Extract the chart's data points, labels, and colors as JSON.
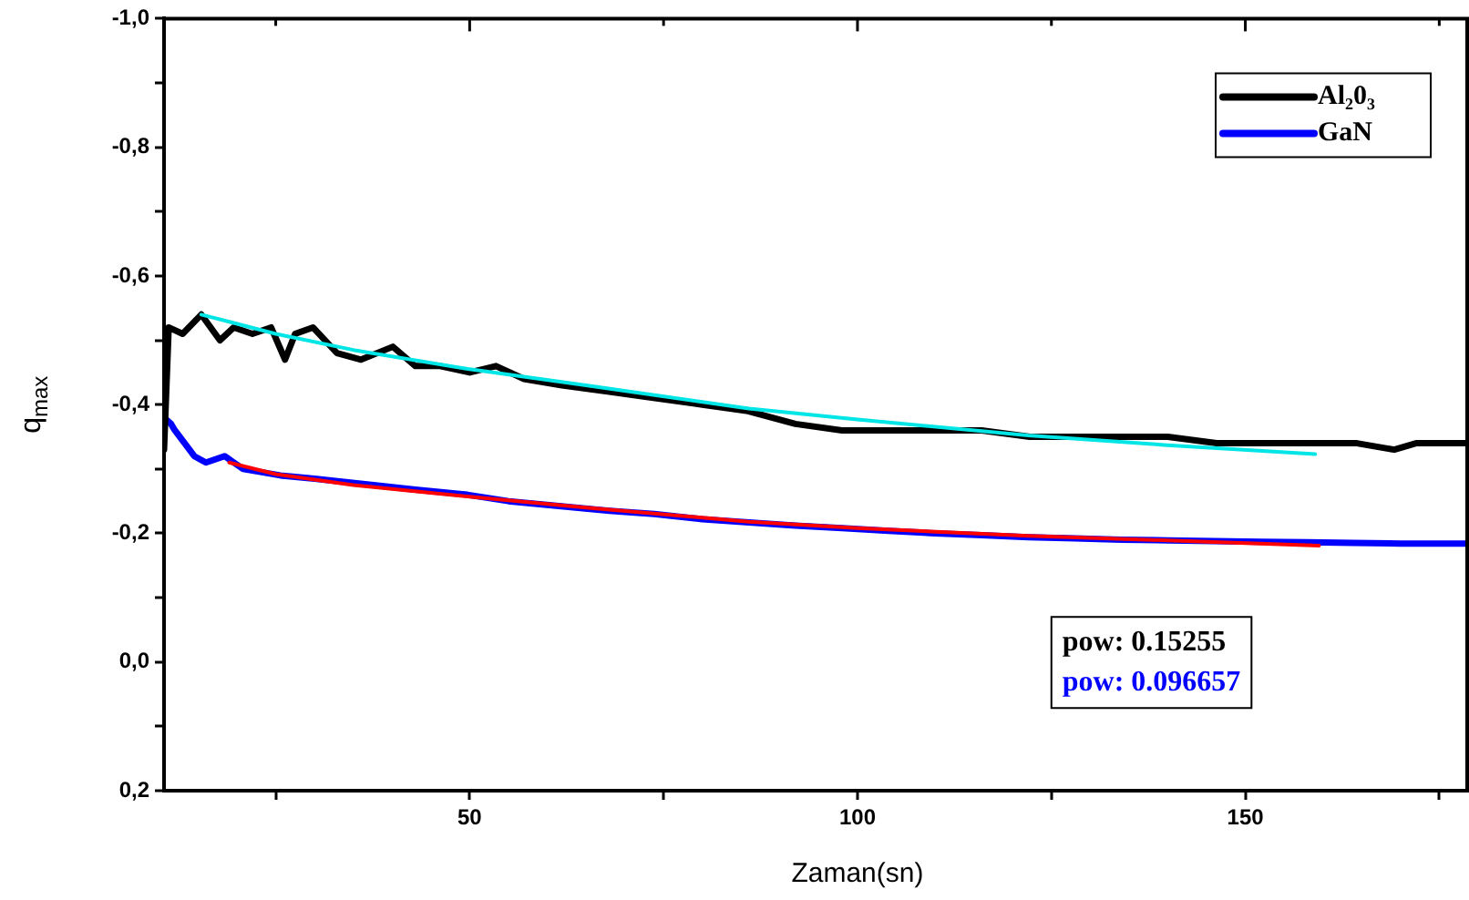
{
  "chart_data": {
    "type": "line",
    "xlabel": "Zaman(sn)",
    "ylabel": "q$_{max}$",
    "xlim": [
      10.6,
      178.6
    ],
    "ylim": [
      0.2,
      -1.0
    ],
    "xticks": [
      {
        "value": 25,
        "label": null
      },
      50,
      {
        "value": 75,
        "label": null
      },
      100,
      {
        "value": 125,
        "label": null
      },
      150,
      {
        "value": 175,
        "label": null
      }
    ],
    "yticks": [
      {
        "value": -1.0,
        "label": "-1,0"
      },
      {
        "value": -0.9,
        "label": null
      },
      {
        "value": -0.8,
        "label": "-0,8"
      },
      {
        "value": -0.7,
        "label": null
      },
      {
        "value": -0.6,
        "label": "-0,6"
      },
      {
        "value": -0.5,
        "label": null
      },
      {
        "value": -0.4,
        "label": "-0,4"
      },
      {
        "value": -0.3,
        "label": null
      },
      {
        "value": -0.2,
        "label": "-0,2"
      },
      {
        "value": -0.1,
        "label": null
      },
      {
        "value": 0.0,
        "label": "0,0"
      },
      {
        "value": 0.1,
        "label": null
      },
      {
        "value": 0.2,
        "label": "0,2"
      }
    ],
    "legend": "top right",
    "marker": "none",
    "line_style": "solid",
    "annotations": [
      "pow: 0.15255",
      "pow: 0.096657"
    ],
    "series": [
      {
        "name": "Al₂0₃",
        "color": "#000000",
        "x": [
          10.6,
          11.2,
          13,
          15.4,
          17.8,
          19.6,
          22.0,
          24.4,
          26.2,
          27.5,
          29.8,
          32.9,
          36,
          40.1,
          43,
          46.2,
          50,
          53.4,
          57,
          61.9,
          68,
          73.9,
          80,
          85.9,
          92,
          98,
          104,
          110.1,
          116,
          122.2,
          128,
          134.3,
          140,
          146.3,
          151,
          156,
          160,
          164.4,
          169.2,
          172,
          176.5,
          178.6
        ],
        "values": [
          -0.33,
          -0.52,
          -0.51,
          -0.54,
          -0.5,
          -0.52,
          -0.51,
          -0.52,
          -0.47,
          -0.51,
          -0.52,
          -0.48,
          -0.47,
          -0.49,
          -0.46,
          -0.46,
          -0.45,
          -0.46,
          -0.44,
          -0.43,
          -0.42,
          -0.41,
          -0.4,
          -0.39,
          -0.37,
          -0.36,
          -0.36,
          -0.36,
          -0.36,
          -0.35,
          -0.35,
          -0.35,
          -0.35,
          -0.34,
          -0.34,
          -0.34,
          -0.34,
          -0.34,
          -0.33,
          -0.34,
          -0.34,
          -0.34
        ]
      },
      {
        "name": "GaN",
        "color": "#0000ff",
        "x": [
          10.6,
          11.5,
          12,
          14.5,
          16,
          18.4,
          20.8,
          25.6,
          30,
          37.6,
          43,
          49.7,
          55,
          61.8,
          68,
          73.8,
          80,
          86,
          92,
          98,
          104,
          110,
          116,
          122,
          128,
          134,
          140,
          146,
          152,
          158,
          164,
          170,
          178.6
        ],
        "values": [
          -0.38,
          -0.37,
          -0.36,
          -0.32,
          -0.31,
          -0.32,
          -0.3,
          -0.29,
          -0.285,
          -0.275,
          -0.268,
          -0.26,
          -0.25,
          -0.242,
          -0.235,
          -0.23,
          -0.222,
          -0.217,
          -0.212,
          -0.208,
          -0.204,
          -0.2,
          -0.197,
          -0.194,
          -0.192,
          -0.19,
          -0.189,
          -0.188,
          -0.187,
          -0.186,
          -0.185,
          -0.184,
          -0.184
        ]
      },
      {
        "color": "#00e5e5",
        "x": [
          15.4,
          25,
          35,
          50,
          65,
          86,
          100,
          122,
          140,
          159
        ],
        "values": [
          -0.54,
          -0.51,
          -0.485,
          -0.455,
          -0.43,
          -0.394,
          -0.377,
          -0.352,
          -0.337,
          -0.323
        ]
      },
      {
        "color": "#ff0000",
        "x": [
          19,
          25,
          35,
          50,
          65,
          86,
          100,
          122,
          140,
          159.5
        ],
        "values": [
          -0.31,
          -0.292,
          -0.275,
          -0.257,
          -0.24,
          -0.218,
          -0.208,
          -0.196,
          -0.189,
          -0.181
        ]
      }
    ]
  }
}
